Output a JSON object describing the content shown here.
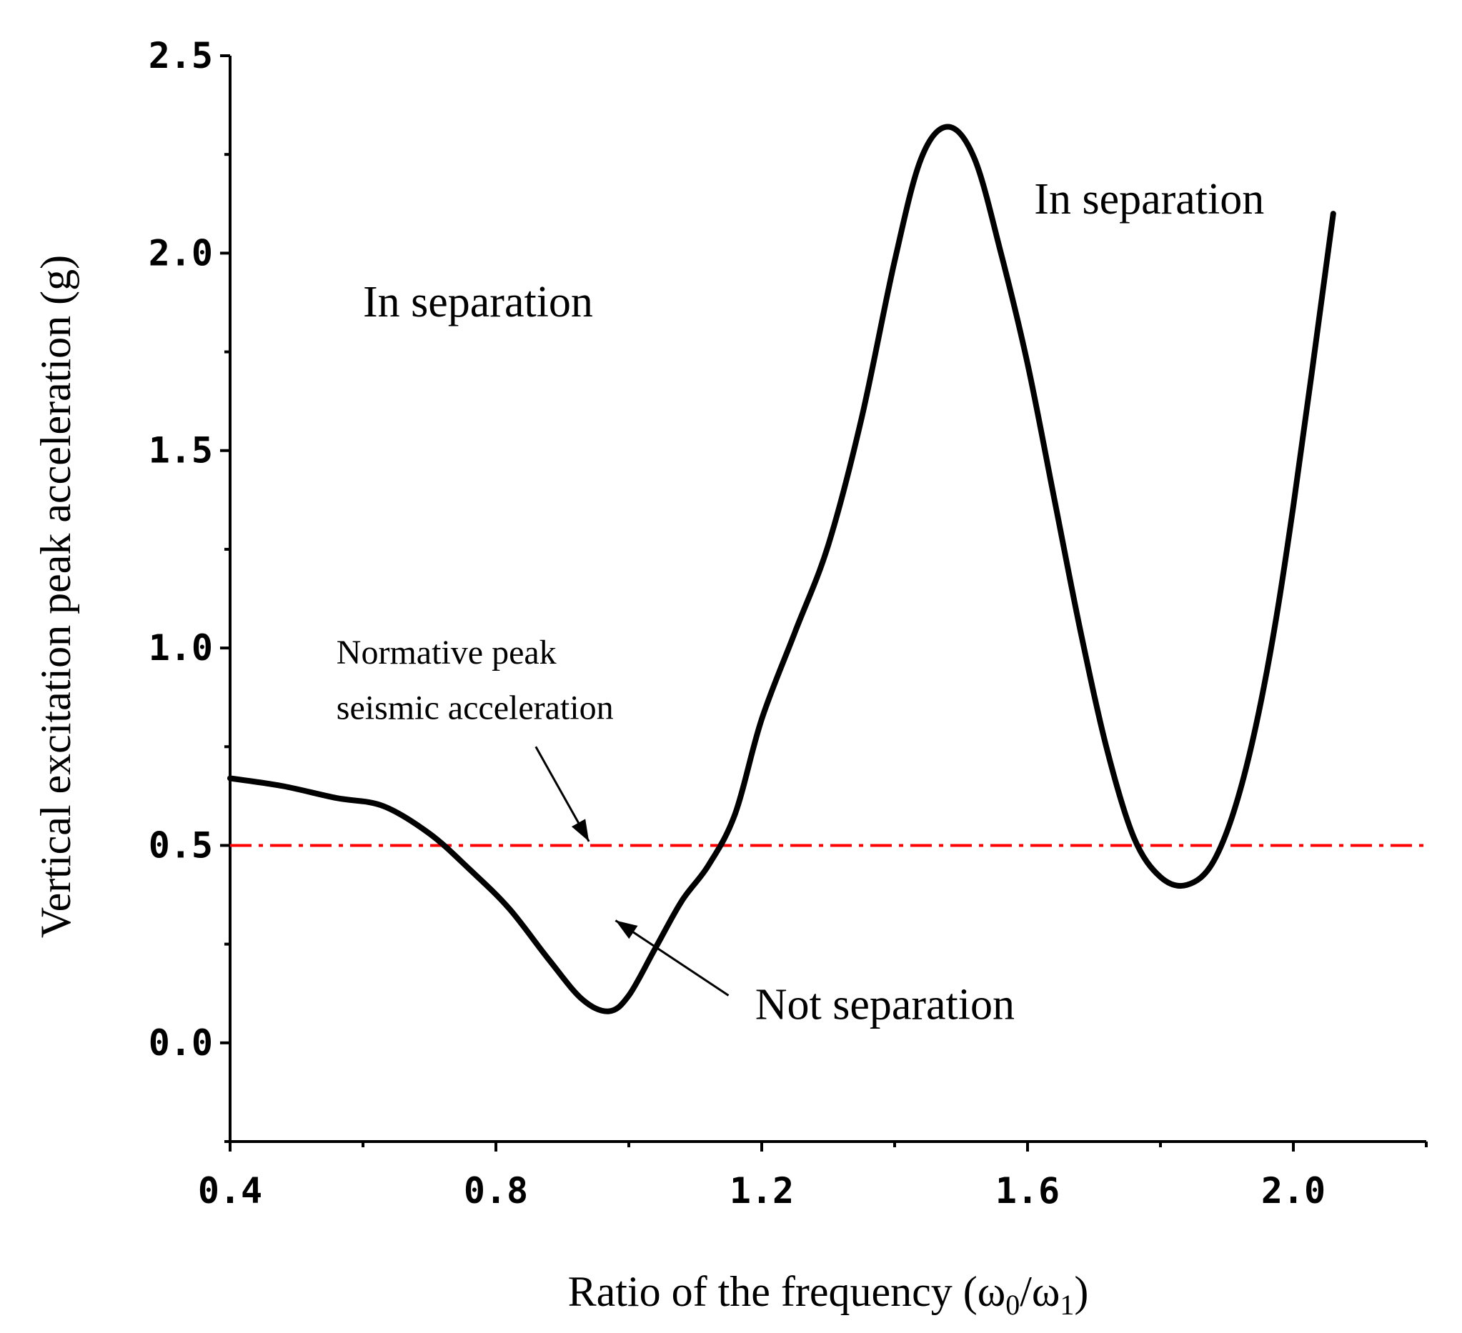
{
  "chart_data": {
    "type": "line",
    "xlabel_main": "Ratio of the frequency (ω",
    "xlabel_sub0": "0",
    "xlabel_mid": "/ω",
    "xlabel_sub1": "1",
    "xlabel_end": ")",
    "ylabel": "Vertical excitation peak acceleration (g)",
    "xlim": [
      0.4,
      2.2
    ],
    "ylim": [
      -0.25,
      2.5
    ],
    "x_ticks": [
      0.4,
      0.8,
      1.2,
      1.6,
      2.0
    ],
    "x_tick_labels": [
      "0.4",
      "0.8",
      "1.2",
      "1.6",
      "2.0"
    ],
    "x_minor_ticks": [
      0.6,
      1.0,
      1.4,
      1.8,
      2.2
    ],
    "y_ticks": [
      0.0,
      0.5,
      1.0,
      1.5,
      2.0,
      2.5
    ],
    "y_tick_labels": [
      "0.0",
      "0.5",
      "1.0",
      "1.5",
      "2.0",
      "2.5"
    ],
    "y_minor_ticks": [
      -0.25,
      0.25,
      0.75,
      1.25,
      1.75,
      2.25
    ],
    "series": [
      {
        "name": "Vertical excitation peak acceleration",
        "color": "#000000",
        "x": [
          0.4,
          0.48,
          0.56,
          0.63,
          0.7,
          0.76,
          0.82,
          0.88,
          0.93,
          0.97,
          1.0,
          1.04,
          1.08,
          1.12,
          1.16,
          1.2,
          1.25,
          1.3,
          1.35,
          1.4,
          1.44,
          1.48,
          1.52,
          1.56,
          1.6,
          1.64,
          1.68,
          1.72,
          1.76,
          1.8,
          1.84,
          1.88,
          1.92,
          1.96,
          2.0,
          2.06
        ],
        "values": [
          0.67,
          0.65,
          0.62,
          0.6,
          0.53,
          0.44,
          0.34,
          0.21,
          0.11,
          0.08,
          0.12,
          0.24,
          0.36,
          0.45,
          0.58,
          0.82,
          1.04,
          1.26,
          1.58,
          1.98,
          2.24,
          2.32,
          2.24,
          2.0,
          1.72,
          1.38,
          1.04,
          0.74,
          0.52,
          0.42,
          0.4,
          0.46,
          0.64,
          0.94,
          1.36,
          2.1
        ]
      }
    ],
    "reference_line": {
      "name": "Normative peak seismic acceleration",
      "value": 0.5,
      "color": "#ff0000",
      "style": "dash-dot"
    },
    "annotations": [
      {
        "text": "In separation",
        "x": 0.6,
        "y": 1.84
      },
      {
        "text": "In separation",
        "x": 1.61,
        "y": 2.1
      },
      {
        "text": "Normative peak",
        "x": 0.56,
        "y": 0.96
      },
      {
        "text": "seismic acceleration",
        "x": 0.56,
        "y": 0.82
      },
      {
        "text": "Not separation",
        "x": 1.19,
        "y": 0.06
      }
    ],
    "arrows": [
      {
        "from": [
          0.86,
          0.75
        ],
        "to": [
          0.94,
          0.51
        ]
      },
      {
        "from": [
          1.15,
          0.12
        ],
        "to": [
          0.98,
          0.31
        ]
      }
    ],
    "legend": "none",
    "grid": false
  }
}
